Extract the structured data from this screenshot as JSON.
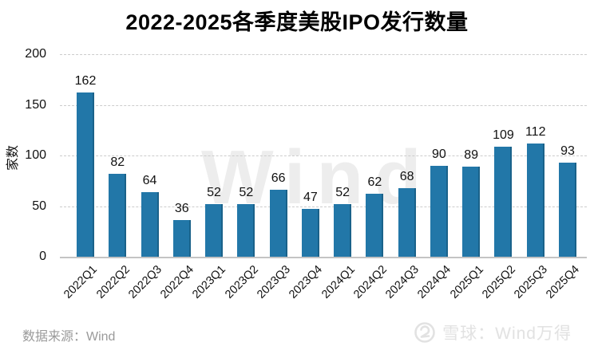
{
  "title": "2022-2025各季度美股IPO发行数量",
  "chart_data": {
    "type": "bar",
    "title": "2022-2025各季度美股IPO发行数量",
    "categories": [
      "2022Q1",
      "2022Q2",
      "2022Q3",
      "2022Q4",
      "2023Q1",
      "2023Q2",
      "2023Q3",
      "2023Q4",
      "2024Q1",
      "2024Q2",
      "2024Q3",
      "2024Q4",
      "2025Q1",
      "2025Q2",
      "2025Q3",
      "2025Q4"
    ],
    "values": [
      162,
      82,
      64,
      36,
      52,
      52,
      66,
      47,
      52,
      62,
      68,
      90,
      89,
      109,
      112,
      93
    ],
    "xlabel": "",
    "ylabel": "家数",
    "ylim": [
      0,
      200
    ],
    "yticks": [
      0,
      50,
      100,
      150,
      200
    ],
    "grid": "horizontal-dashed",
    "legend": "none",
    "bar_color": "#2277a8",
    "value_labels_shown": true
  },
  "watermark": {
    "text": "Wind"
  },
  "footer": {
    "source": "数据来源：Wind",
    "brand": "雪球：Wind万得",
    "brand_icon": "xueqiu-logo-icon",
    "muted_color": "#9a9a9a",
    "watermark_color": "#e2e2e2"
  }
}
